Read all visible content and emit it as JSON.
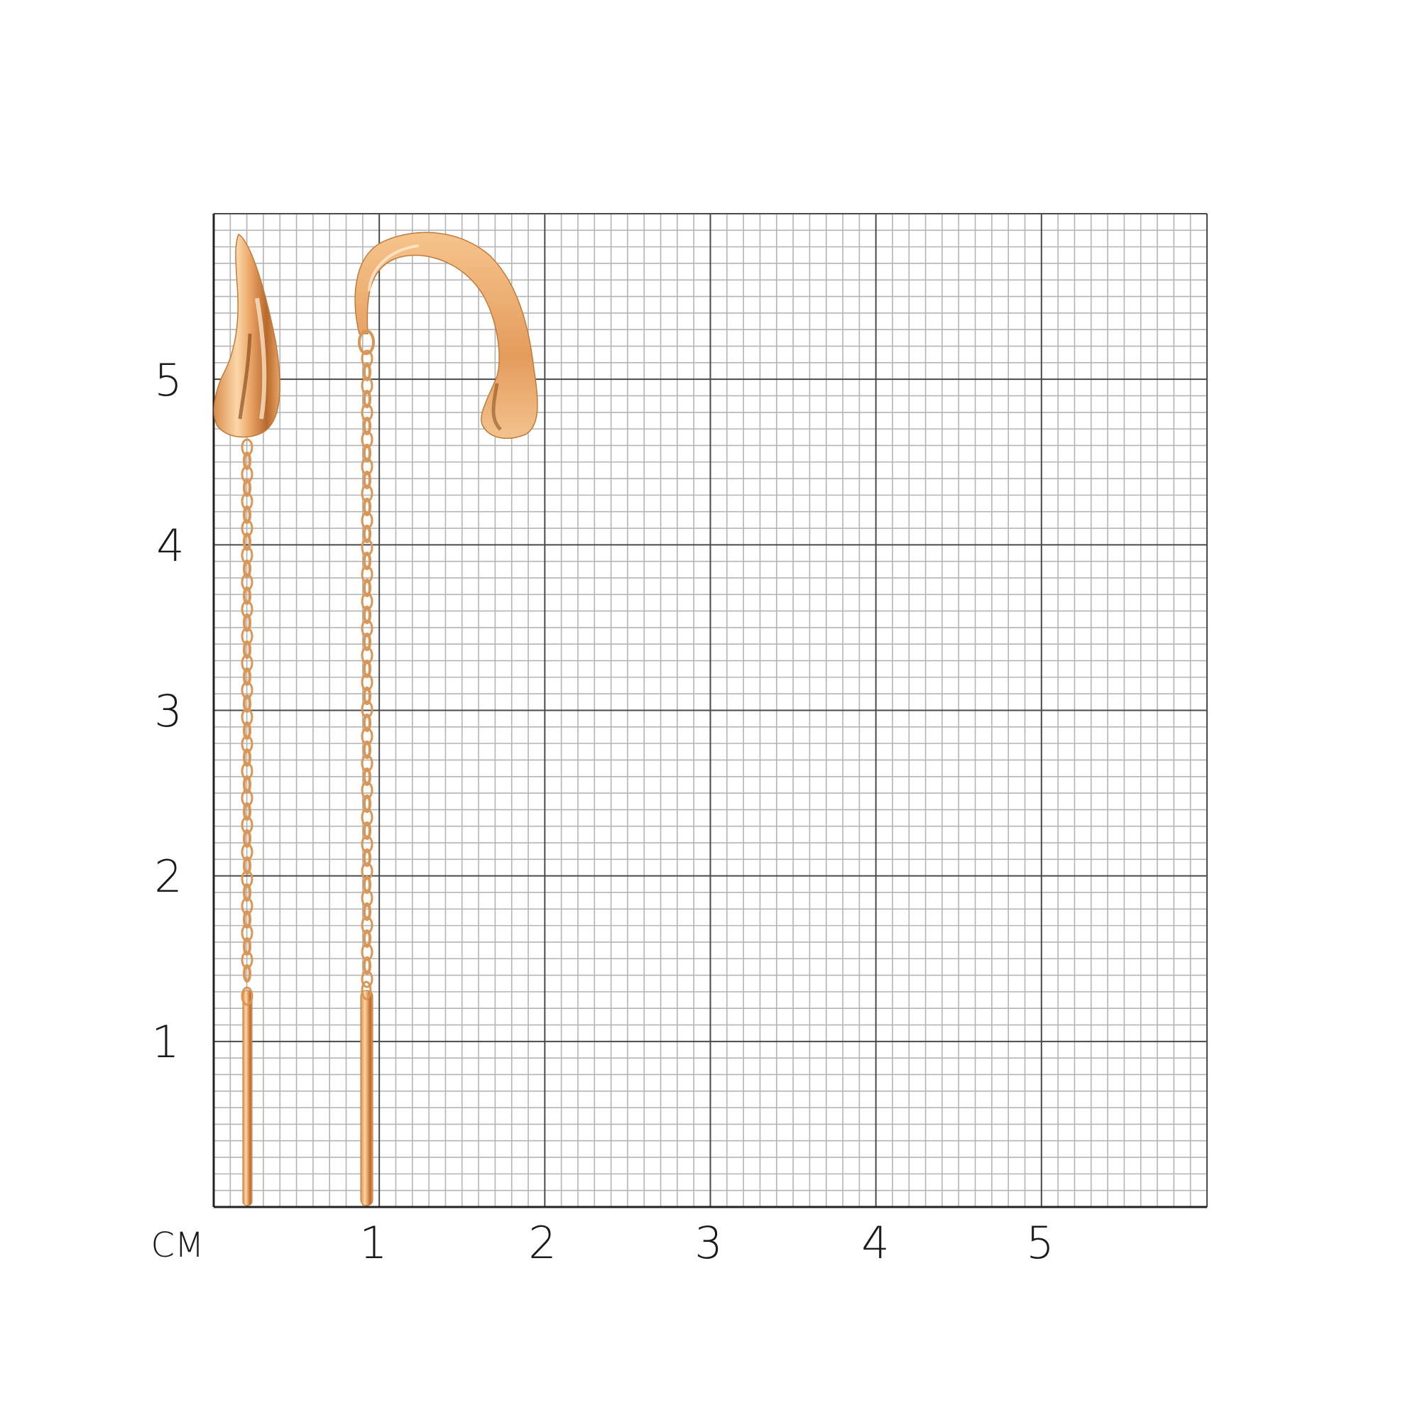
{
  "ruler": {
    "unit_label": "СМ",
    "x_ticks": [
      "1",
      "2",
      "3",
      "4",
      "5"
    ],
    "y_ticks": [
      "1",
      "2",
      "3",
      "4",
      "5"
    ],
    "range_cm": [
      0,
      6
    ],
    "minor_step_mm": 1
  },
  "colors": {
    "gold_light": "#fbd7a8",
    "gold_mid": "#eaa566",
    "gold_dark": "#b8692c",
    "grid_minor": "#b4b4b4",
    "grid_major": "#4a4a4a"
  },
  "product": {
    "items": [
      "teardrop-earring-front",
      "teardrop-earring-side"
    ]
  }
}
